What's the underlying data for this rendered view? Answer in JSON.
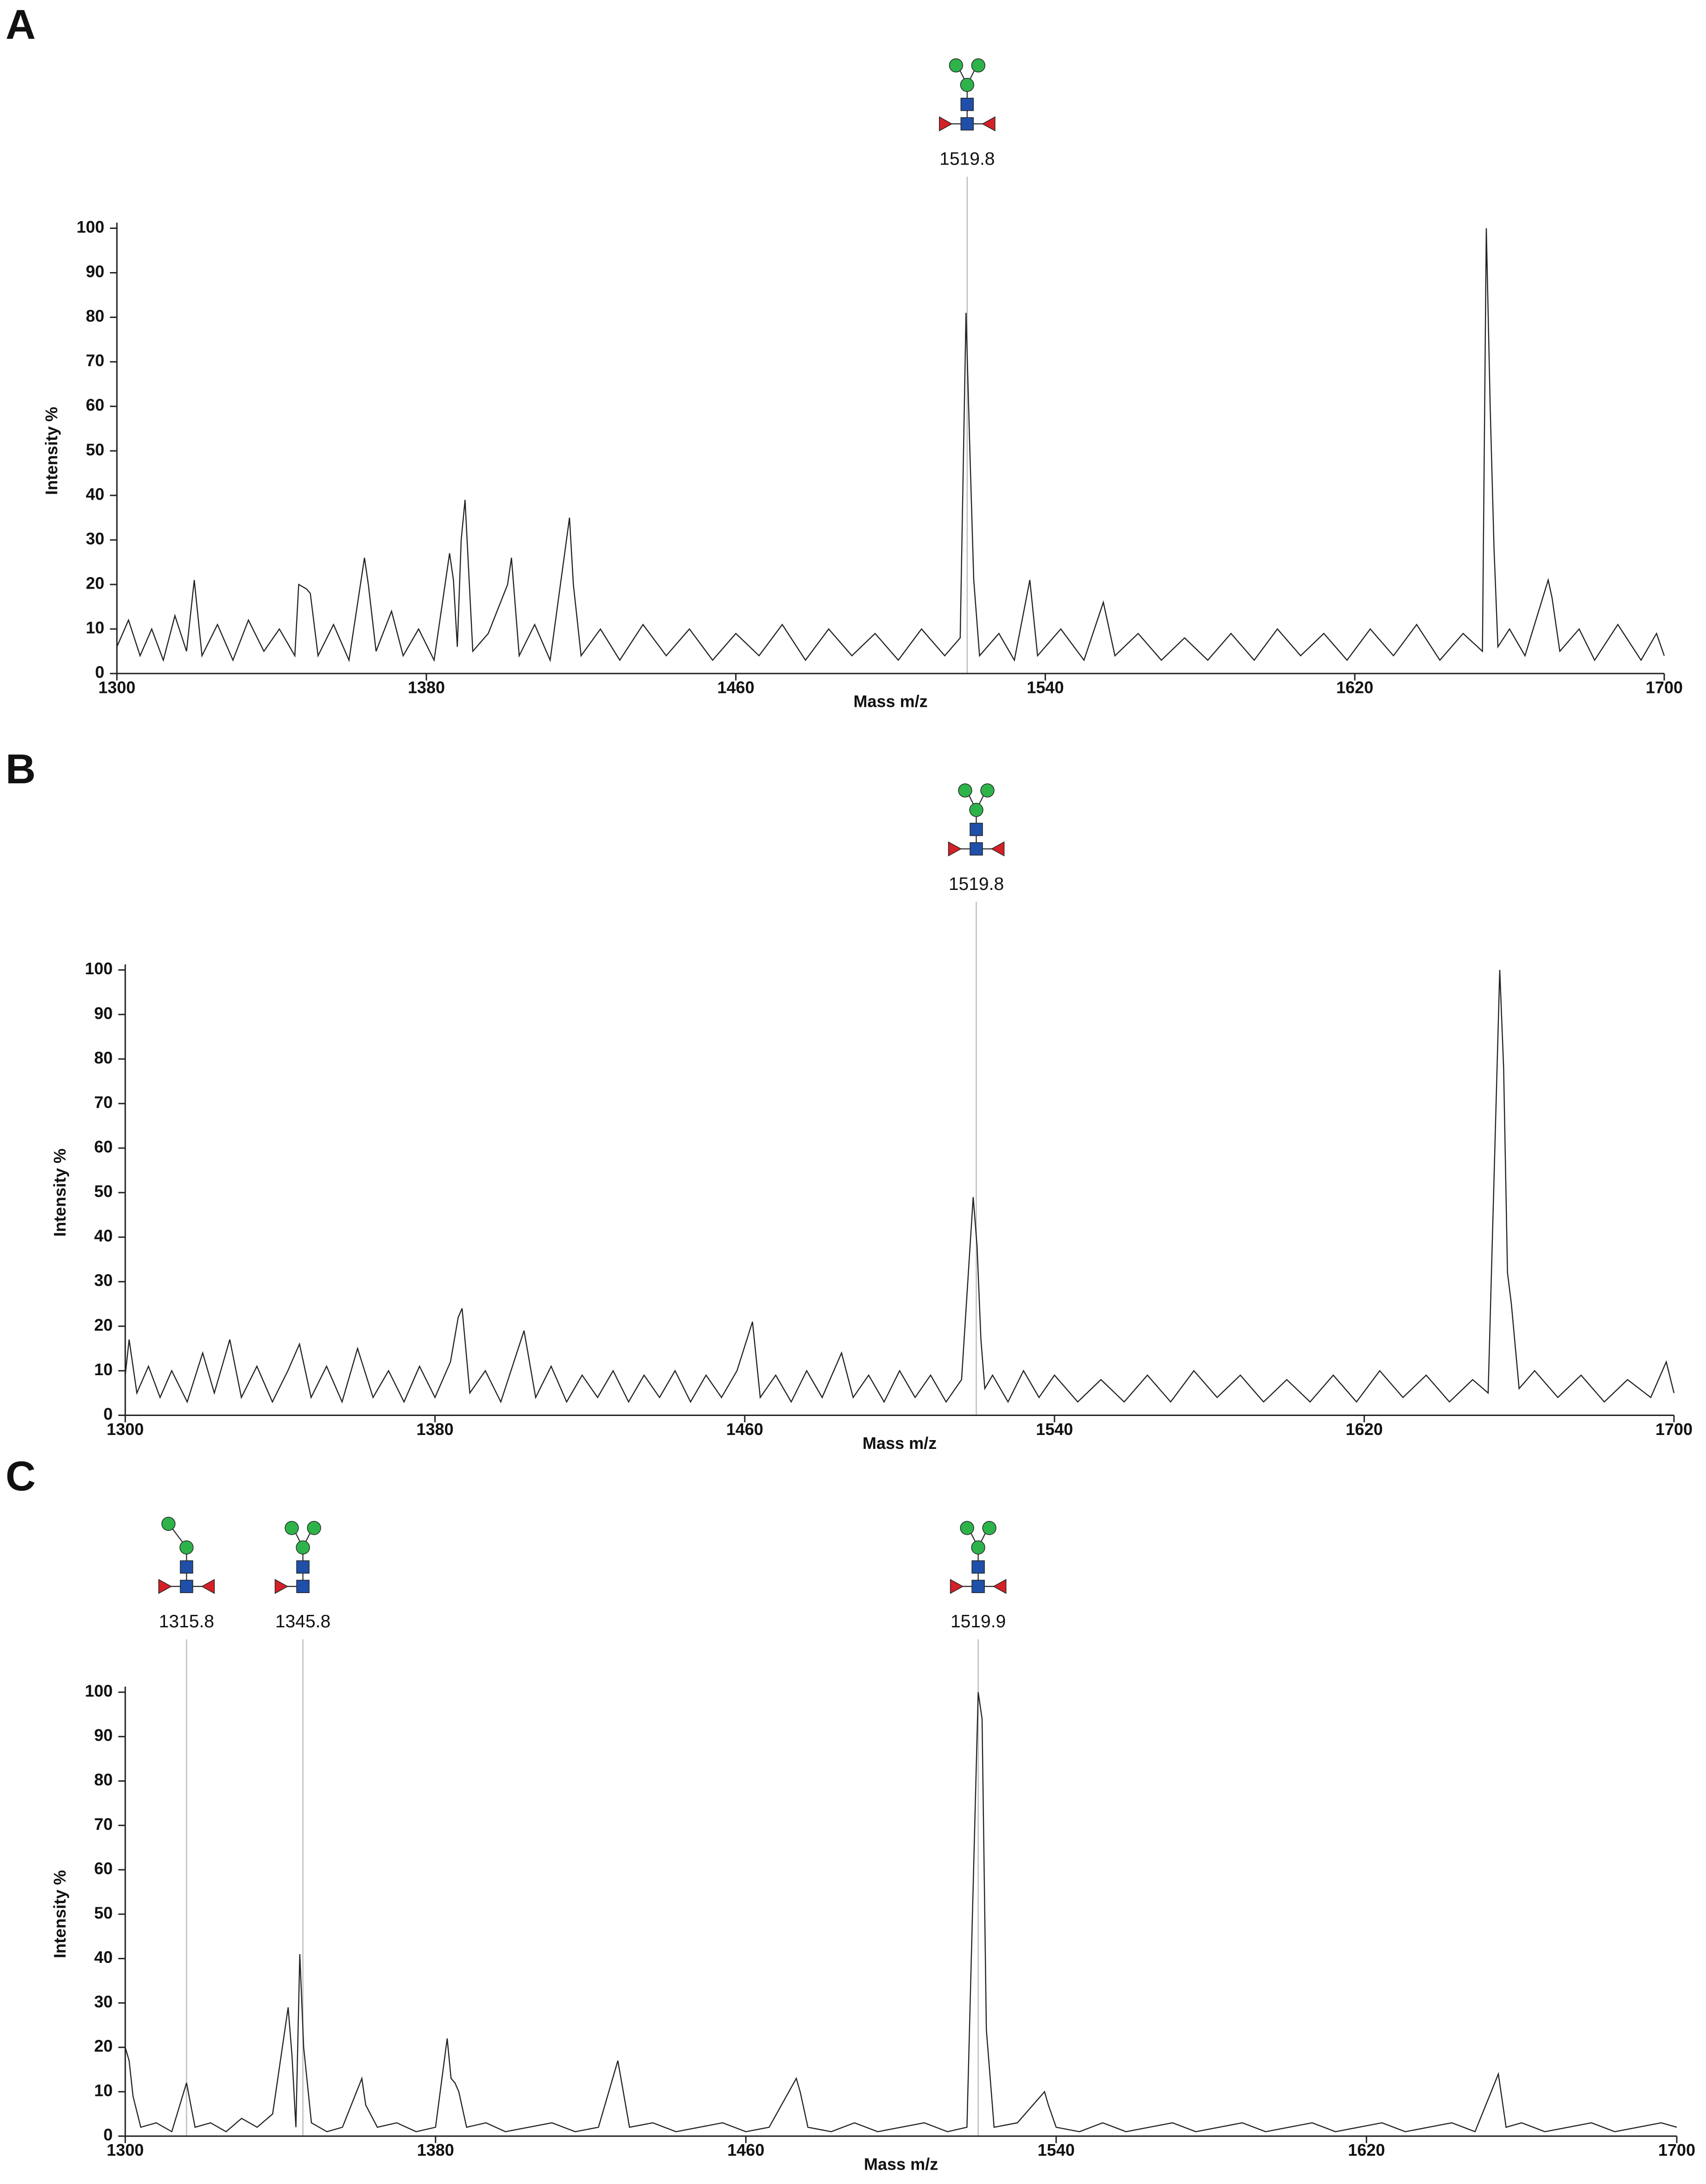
{
  "chart_data": [
    {
      "type": "line",
      "panel": "A",
      "xlabel": "Mass m/z",
      "ylabel": "Intensity %",
      "xlim": [
        1300,
        1700
      ],
      "xticks": [
        1300,
        1380,
        1460,
        1540,
        1620,
        1700
      ],
      "ylim": [
        0,
        100
      ],
      "yticks": [
        0,
        10,
        20,
        30,
        40,
        50,
        60,
        70,
        80,
        90,
        100
      ],
      "color": "#222222",
      "annotations": [
        {
          "x": 1519.8,
          "label": "1519.8"
        }
      ],
      "x": [
        1300,
        1303,
        1306,
        1309,
        1312,
        1315,
        1318,
        1320,
        1322,
        1326,
        1330,
        1334,
        1338,
        1342,
        1346,
        1347,
        1349,
        1350,
        1352,
        1356,
        1360,
        1364,
        1365,
        1367,
        1371,
        1374,
        1378,
        1382,
        1386,
        1387,
        1388,
        1389,
        1390,
        1392,
        1396,
        1401,
        1402,
        1404,
        1408,
        1412,
        1417,
        1418,
        1420,
        1425,
        1430,
        1436,
        1442,
        1448,
        1454,
        1460,
        1466,
        1472,
        1478,
        1484,
        1490,
        1496,
        1502,
        1508,
        1514,
        1518,
        1519.5,
        1520.5,
        1521.5,
        1523,
        1528,
        1532,
        1536,
        1538,
        1544,
        1550,
        1555,
        1558,
        1564,
        1570,
        1576,
        1582,
        1588,
        1594,
        1600,
        1606,
        1612,
        1618,
        1624,
        1630,
        1636,
        1642,
        1648,
        1653,
        1654,
        1655,
        1656,
        1657,
        1660,
        1664,
        1670,
        1671,
        1673,
        1678,
        1682,
        1688,
        1694,
        1698,
        1700
      ],
      "values": [
        6,
        12,
        4,
        10,
        3,
        13,
        5,
        21,
        4,
        11,
        3,
        12,
        5,
        10,
        4,
        20,
        19,
        18,
        4,
        11,
        3,
        26,
        20,
        5,
        14,
        4,
        10,
        3,
        27,
        21,
        6,
        30,
        39,
        5,
        9,
        20,
        26,
        4,
        11,
        3,
        35,
        20,
        4,
        10,
        3,
        11,
        4,
        10,
        3,
        9,
        4,
        11,
        3,
        10,
        4,
        9,
        3,
        10,
        4,
        8,
        81,
        50,
        21,
        4,
        9,
        3,
        21,
        4,
        10,
        3,
        16,
        4,
        9,
        3,
        8,
        3,
        9,
        3,
        10,
        4,
        9,
        3,
        10,
        4,
        11,
        3,
        9,
        5,
        100,
        60,
        28,
        6,
        10,
        4,
        21,
        17,
        5,
        10,
        3,
        11,
        3,
        9,
        4
      ]
    },
    {
      "type": "line",
      "panel": "B",
      "xlabel": "Mass m/z",
      "ylabel": "Intensity %",
      "xlim": [
        1300,
        1700
      ],
      "xticks": [
        1300,
        1380,
        1460,
        1540,
        1620,
        1700
      ],
      "ylim": [
        0,
        100
      ],
      "yticks": [
        0,
        10,
        20,
        30,
        40,
        50,
        60,
        70,
        80,
        90,
        100
      ],
      "color": "#222222",
      "annotations": [
        {
          "x": 1519.8,
          "label": "1519.8"
        }
      ],
      "x": [
        1300,
        1301,
        1303,
        1306,
        1309,
        1312,
        1316,
        1320,
        1323,
        1327,
        1330,
        1334,
        1338,
        1342,
        1345,
        1348,
        1352,
        1356,
        1360,
        1364,
        1368,
        1372,
        1376,
        1380,
        1384,
        1386,
        1387,
        1389,
        1393,
        1397,
        1403,
        1406,
        1410,
        1414,
        1418,
        1422,
        1426,
        1430,
        1434,
        1438,
        1442,
        1446,
        1450,
        1454,
        1458,
        1462,
        1464,
        1468,
        1472,
        1476,
        1480,
        1485,
        1488,
        1492,
        1496,
        1500,
        1504,
        1508,
        1512,
        1516,
        1519,
        1520,
        1521,
        1522,
        1524,
        1528,
        1532,
        1536,
        1540,
        1546,
        1552,
        1558,
        1564,
        1570,
        1576,
        1582,
        1588,
        1594,
        1600,
        1606,
        1612,
        1618,
        1624,
        1630,
        1636,
        1642,
        1648,
        1652,
        1655,
        1656,
        1657,
        1658,
        1660,
        1664,
        1670,
        1676,
        1682,
        1688,
        1694,
        1698,
        1700
      ],
      "values": [
        9,
        17,
        5,
        11,
        4,
        10,
        3,
        14,
        5,
        17,
        4,
        11,
        3,
        10,
        16,
        4,
        11,
        3,
        15,
        4,
        10,
        3,
        11,
        4,
        12,
        22,
        24,
        5,
        10,
        3,
        19,
        4,
        11,
        3,
        9,
        4,
        10,
        3,
        9,
        4,
        10,
        3,
        9,
        4,
        10,
        21,
        4,
        9,
        3,
        10,
        4,
        14,
        4,
        9,
        3,
        10,
        4,
        9,
        3,
        8,
        49,
        38,
        17,
        6,
        9,
        3,
        10,
        4,
        9,
        3,
        8,
        3,
        9,
        3,
        10,
        4,
        9,
        3,
        8,
        3,
        9,
        3,
        10,
        4,
        9,
        3,
        8,
        5,
        100,
        78,
        32,
        25,
        6,
        10,
        4,
        9,
        3,
        8,
        4,
        12,
        5
      ]
    },
    {
      "type": "line",
      "panel": "C",
      "xlabel": "Mass m/z",
      "ylabel": "Intensity %",
      "xlim": [
        1300,
        1700
      ],
      "xticks": [
        1300,
        1380,
        1460,
        1540,
        1620,
        1700
      ],
      "ylim": [
        0,
        100
      ],
      "yticks": [
        0,
        10,
        20,
        30,
        40,
        50,
        60,
        70,
        80,
        90,
        100
      ],
      "color": "#222222",
      "annotations": [
        {
          "x": 1315.8,
          "label": "1315.8"
        },
        {
          "x": 1345.8,
          "label": "1345.8"
        },
        {
          "x": 1519.9,
          "label": "1519.9"
        }
      ],
      "x": [
        1300,
        1301,
        1302,
        1304,
        1308,
        1312,
        1315.8,
        1318,
        1322,
        1326,
        1330,
        1334,
        1338,
        1342,
        1343,
        1344,
        1345,
        1346,
        1348,
        1352,
        1356,
        1361,
        1362,
        1365,
        1370,
        1375,
        1380,
        1383,
        1384,
        1385,
        1386,
        1388,
        1393,
        1398,
        1404,
        1410,
        1416,
        1422,
        1427,
        1428,
        1430,
        1436,
        1442,
        1448,
        1454,
        1460,
        1466,
        1473,
        1474,
        1476,
        1482,
        1488,
        1494,
        1500,
        1506,
        1512,
        1517,
        1519.9,
        1520.9,
        1522,
        1524,
        1530,
        1537,
        1538,
        1540,
        1546,
        1552,
        1558,
        1564,
        1570,
        1576,
        1582,
        1588,
        1594,
        1600,
        1606,
        1612,
        1618,
        1624,
        1630,
        1636,
        1642,
        1648,
        1654,
        1656,
        1660,
        1666,
        1672,
        1678,
        1684,
        1690,
        1696,
        1700
      ],
      "values": [
        20,
        17,
        9,
        2,
        3,
        1,
        12,
        2,
        3,
        1,
        4,
        2,
        5,
        29,
        18,
        2,
        41,
        20,
        3,
        1,
        2,
        13,
        7,
        2,
        3,
        1,
        2,
        22,
        13,
        12,
        10,
        2,
        3,
        1,
        2,
        3,
        1,
        2,
        17,
        12,
        2,
        3,
        1,
        2,
        3,
        1,
        2,
        13,
        10,
        2,
        1,
        3,
        1,
        2,
        3,
        1,
        2,
        100,
        94,
        24,
        2,
        3,
        10,
        7,
        2,
        1,
        3,
        1,
        2,
        3,
        1,
        2,
        3,
        1,
        2,
        3,
        1,
        2,
        3,
        1,
        2,
        3,
        1,
        14,
        2,
        3,
        1,
        2,
        3,
        1,
        2,
        3,
        2
      ]
    }
  ]
}
